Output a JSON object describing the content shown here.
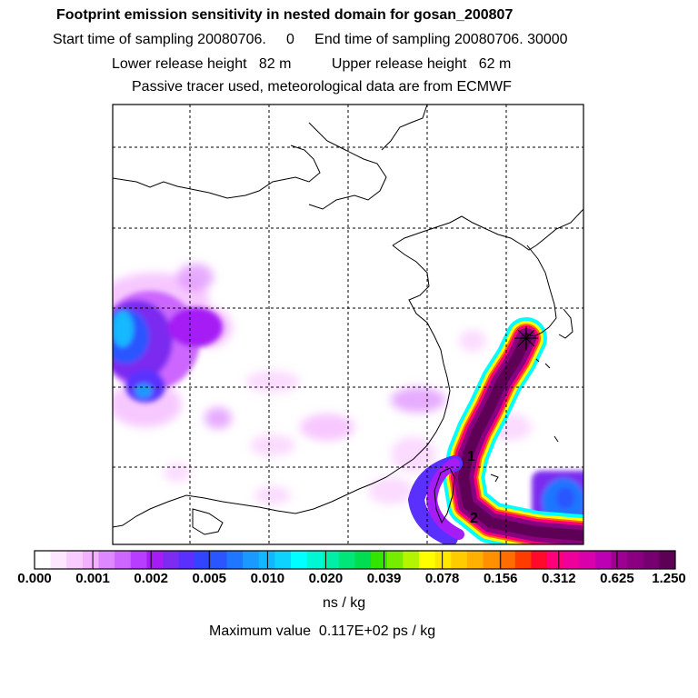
{
  "header": {
    "title": "Footprint emission sensitivity in nested domain for gosan_200807",
    "sampling_line": "Start time of sampling 20080706.     0     End time of sampling 20080706. 30000",
    "release_line": "Lower release height   82 m          Upper release height   62 m",
    "tracer_line": "Passive tracer used, meteorological data are from ECMWF"
  },
  "map": {
    "labels": [
      "1",
      "2"
    ],
    "receptor_marker": "asterisk-icon"
  },
  "colorbar": {
    "colors": [
      "#ffffff",
      "#fde6ff",
      "#f9ccff",
      "#f3b0ff",
      "#dd88ff",
      "#cc66ff",
      "#b93dff",
      "#a51cf5",
      "#7b2cf0",
      "#5a30ff",
      "#3344ff",
      "#2a55ff",
      "#1f77ff",
      "#1a99ff",
      "#12b8ff",
      "#0fd3ff",
      "#00ffff",
      "#00f7d3",
      "#00eea5",
      "#00e678",
      "#00dd50",
      "#33e400",
      "#77ec00",
      "#b5f400",
      "#ffff00",
      "#ffe800",
      "#ffcc00",
      "#ffb000",
      "#ff9000",
      "#ff6d00",
      "#ff3c00",
      "#ff0a2a",
      "#ff007a",
      "#ef009a",
      "#d900ac",
      "#bd00b4",
      "#9d0090",
      "#8a0080",
      "#760070",
      "#5e0055"
    ],
    "ticks": [
      "0.000",
      "0.001",
      "0.002",
      "0.005",
      "0.010",
      "0.020",
      "0.039",
      "0.078",
      "0.156",
      "0.312",
      "0.625",
      "1.250"
    ],
    "units": "ns / kg"
  },
  "footer": {
    "max_value_line": "Maximum value  0.117E+02 ps / kg"
  }
}
